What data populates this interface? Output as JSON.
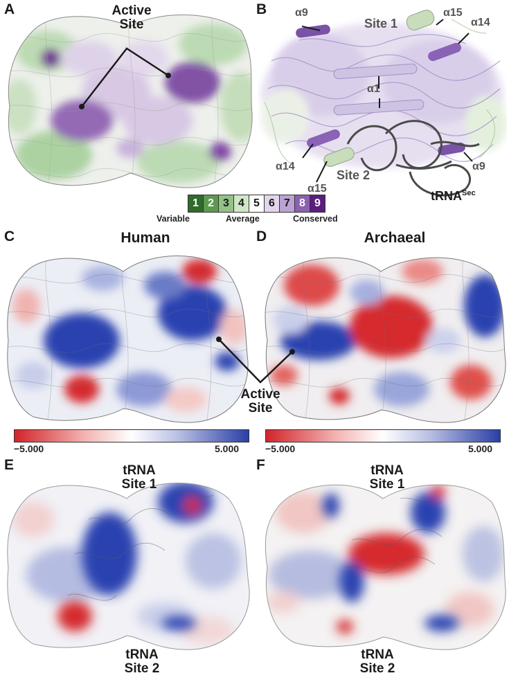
{
  "panels": {
    "A": {
      "label": "A",
      "active_site": "Active\nSite"
    },
    "B": {
      "label": "B",
      "site1": "Site 1",
      "site2": "Site 2",
      "a9_top": "α9",
      "a15_top": "α15",
      "a14_top": "α14",
      "a1": "α1",
      "a14_bot": "α14",
      "a15_bot": "α15",
      "a9_bot": "α9",
      "trna_base": "tRNA",
      "trna_sup": "Sec"
    },
    "C": {
      "label": "C",
      "title": "Human"
    },
    "D": {
      "label": "D",
      "title": "Archaeal"
    },
    "CD": {
      "active_site": "Active\nSite"
    },
    "E": {
      "label": "E",
      "top_label": "tRNA\nSite 1",
      "bottom_label": "tRNA\nSite 2"
    },
    "F": {
      "label": "F",
      "top_label": "tRNA\nSite 1",
      "bottom_label": "tRNA\nSite 2"
    }
  },
  "conservation_scale": {
    "levels": [
      "1",
      "2",
      "3",
      "4",
      "5",
      "6",
      "7",
      "8",
      "9"
    ],
    "colors": [
      "#2f6b2a",
      "#5c9a4f",
      "#92c286",
      "#cfe6c7",
      "#ffffff",
      "#e3d6ec",
      "#bca2d3",
      "#8c61b0",
      "#5b1d7e"
    ],
    "text_colors": [
      "#ffffff",
      "#ffffff",
      "#1a1a1a",
      "#1a1a1a",
      "#1a1a1a",
      "#1a1a1a",
      "#1a1a1a",
      "#ffffff",
      "#ffffff"
    ],
    "labels": {
      "variable": "Variable",
      "average": "Average",
      "conserved": "Conserved"
    }
  },
  "colorbars": [
    {
      "min": "−5.000",
      "max": "5.000"
    },
    {
      "min": "−5.000",
      "max": "5.000"
    }
  ]
}
